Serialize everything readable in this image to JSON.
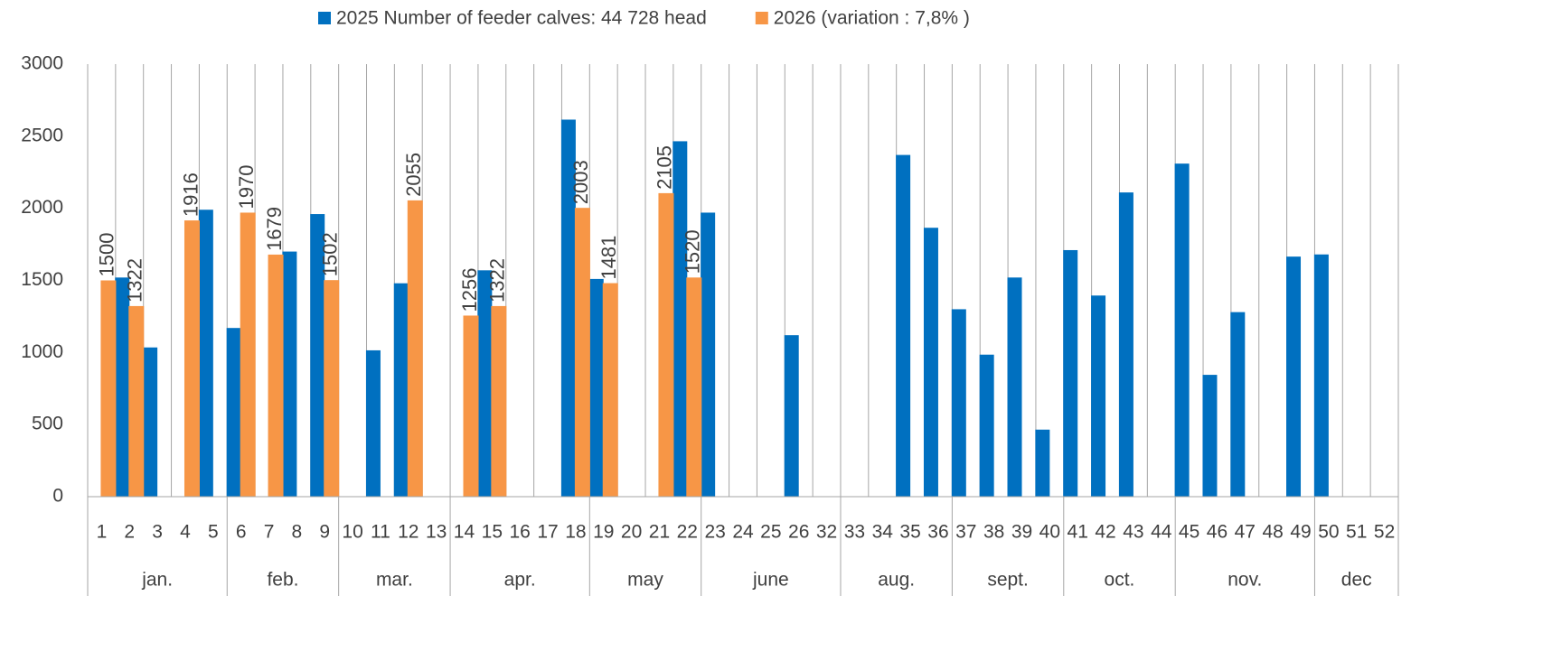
{
  "chart_data": {
    "type": "bar",
    "series": [
      {
        "name": "2025 Number of feeder calves: 44 728 head",
        "color": "#0070c0",
        "values": [
          null,
          1520,
          1035,
          null,
          1990,
          1170,
          null,
          1700,
          1960,
          null,
          1015,
          1480,
          null,
          null,
          1570,
          null,
          null,
          2615,
          1510,
          null,
          null,
          2465,
          1970,
          null,
          null,
          1120,
          null,
          null,
          null,
          2370,
          1865,
          1300,
          985,
          1520,
          465,
          1710,
          1395,
          2110,
          null,
          2310,
          845,
          1280,
          null,
          1665,
          1680,
          null,
          null
        ]
      },
      {
        "name": "2026 (variation : 7,8% )",
        "color": "#f79646",
        "data_labels": true,
        "values": [
          1500,
          1322,
          null,
          1916,
          null,
          1970,
          1679,
          null,
          1502,
          null,
          null,
          2055,
          null,
          1256,
          1322,
          null,
          null,
          2003,
          1481,
          null,
          2105,
          1520,
          null,
          null,
          null,
          null,
          null,
          null,
          null,
          null,
          null,
          null,
          null,
          null,
          null,
          null,
          null,
          null,
          null,
          null,
          null,
          null,
          null,
          null,
          null,
          null,
          null
        ]
      }
    ],
    "categories": [
      "1",
      "2",
      "3",
      "4",
      "5",
      "6",
      "7",
      "8",
      "9",
      "10",
      "11",
      "12",
      "13",
      "14",
      "15",
      "16",
      "17",
      "18",
      "19",
      "20",
      "21",
      "22",
      "23",
      "24",
      "25",
      "26",
      "32",
      "33",
      "34",
      "35",
      "36",
      "37",
      "38",
      "39",
      "40",
      "41",
      "42",
      "43",
      "44",
      "45",
      "46",
      "47",
      "48",
      "49",
      "50",
      "51",
      "52"
    ],
    "category_groups": [
      "jan.",
      "jan.",
      "jan.",
      "jan.",
      "jan.",
      "feb.",
      "feb.",
      "feb.",
      "feb.",
      "mar.",
      "mar.",
      "mar.",
      "mar.",
      "apr.",
      "apr.",
      "apr.",
      "apr.",
      "apr.",
      "may",
      "may",
      "may",
      "may",
      "june",
      "june",
      "june",
      "june",
      "june",
      "aug.",
      "aug.",
      "aug.",
      "aug.",
      "sept.",
      "sept.",
      "sept.",
      "sept.",
      "oct.",
      "oct.",
      "oct.",
      "oct.",
      "nov.",
      "nov.",
      "nov.",
      "nov.",
      "nov.",
      "dec",
      "dec",
      "dec"
    ],
    "ylim": [
      0,
      3000
    ],
    "yticks": [
      0,
      500,
      1000,
      1500,
      2000,
      2500,
      3000
    ],
    "legend": "top"
  }
}
